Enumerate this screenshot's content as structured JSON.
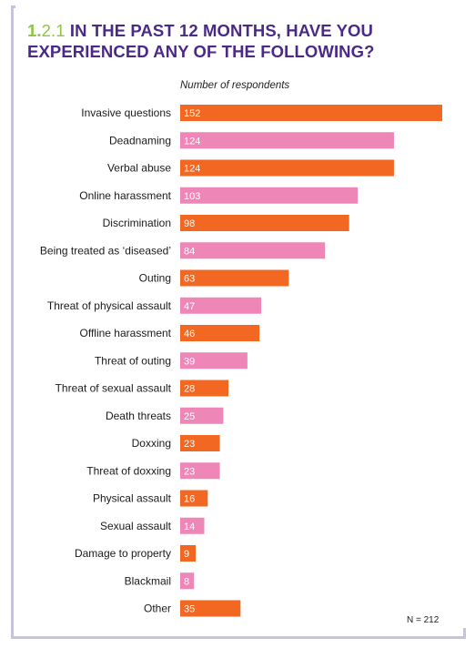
{
  "header": {
    "number_major": "1.",
    "number_minor": "2.1",
    "title": "IN THE PAST 12 MONTHS, HAVE YOU EXPERIENCED ANY OF THE FOLLOWING?"
  },
  "note": "N = 212",
  "colors": {
    "orange": "#f26722",
    "pink": "#ee86b7",
    "title": "#4a2a86",
    "accent": "#8cc63f"
  },
  "chart_data": {
    "type": "bar",
    "orientation": "horizontal",
    "xlabel": "Number of respondents",
    "categories": [
      "Invasive questions",
      "Deadnaming",
      "Verbal abuse",
      "Online harassment",
      "Discrimination",
      "Being treated as ‘diseased’",
      "Outing",
      "Threat of physical assault",
      "Offline harassment",
      "Threat of outing",
      "Threat of sexual assault",
      "Death threats",
      "Doxxing",
      "Threat of doxxing",
      "Physical assault",
      "Sexual assault",
      "Damage to property",
      "Blackmail",
      "Other"
    ],
    "values": [
      152,
      124,
      124,
      103,
      98,
      84,
      63,
      47,
      46,
      39,
      28,
      25,
      23,
      23,
      16,
      14,
      9,
      8,
      35
    ],
    "bar_colors": [
      "orange",
      "pink",
      "orange",
      "pink",
      "orange",
      "pink",
      "orange",
      "pink",
      "orange",
      "pink",
      "orange",
      "pink",
      "orange",
      "pink",
      "orange",
      "pink",
      "orange",
      "pink",
      "orange"
    ],
    "grid": false,
    "legend": "none"
  }
}
